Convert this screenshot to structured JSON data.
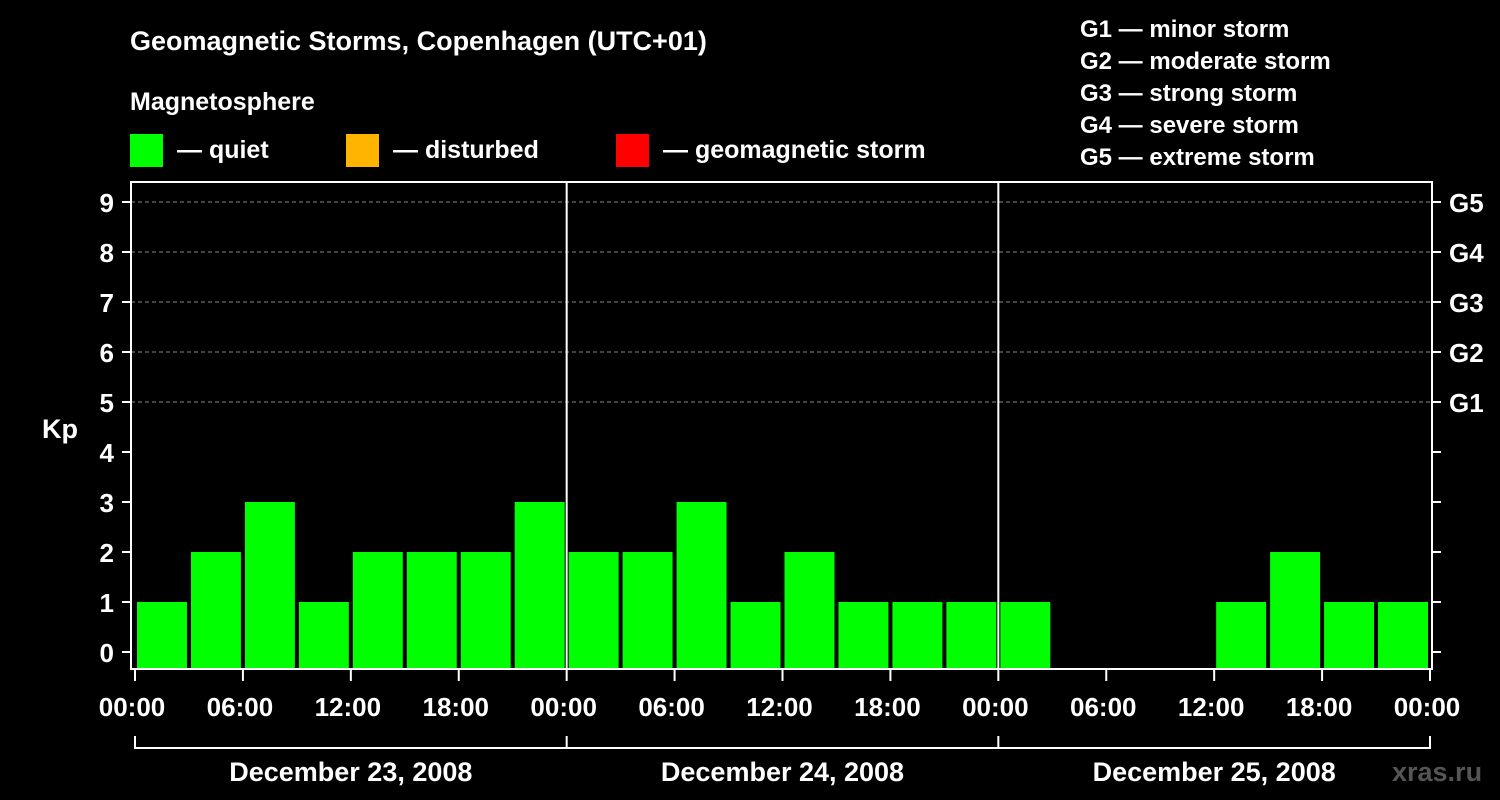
{
  "chart_data": {
    "type": "bar",
    "title": "Geomagnetic Storms, Copenhagen (UTC+01)",
    "legend_title": "Magnetosphere",
    "legend": [
      {
        "label": "— quiet",
        "color": "#00ff00"
      },
      {
        "label": "— disturbed",
        "color": "#ffb400"
      },
      {
        "label": "— geomagnetic storm",
        "color": "#ff0000"
      }
    ],
    "storm_scale": [
      "G1 — minor storm",
      "G2 — moderate storm",
      "G3 — strong storm",
      "G4 — severe storm",
      "G5 — extreme storm"
    ],
    "ylabel": "Kp",
    "ylim": [
      0,
      9
    ],
    "y_ticks": [
      "0",
      "1",
      "2",
      "3",
      "4",
      "5",
      "6",
      "7",
      "8",
      "9"
    ],
    "right_ticks": [
      {
        "label": "G1",
        "kp": 5
      },
      {
        "label": "G2",
        "kp": 6
      },
      {
        "label": "G3",
        "kp": 7
      },
      {
        "label": "G4",
        "kp": 8
      },
      {
        "label": "G5",
        "kp": 9
      }
    ],
    "x_ticks": [
      "00:00",
      "06:00",
      "12:00",
      "18:00",
      "00:00",
      "06:00",
      "12:00",
      "18:00",
      "00:00",
      "06:00",
      "12:00",
      "18:00",
      "00:00"
    ],
    "days": [
      "December 23, 2008",
      "December 24, 2008",
      "December 25, 2008"
    ],
    "interval_hours": 3,
    "series": [
      {
        "name": "Kp",
        "values": [
          1,
          2,
          3,
          1,
          2,
          2,
          2,
          3,
          2,
          2,
          3,
          1,
          2,
          1,
          1,
          1,
          1,
          0,
          0,
          0,
          1,
          2,
          1,
          1
        ]
      }
    ],
    "grid": true
  },
  "watermark": "xras.ru"
}
